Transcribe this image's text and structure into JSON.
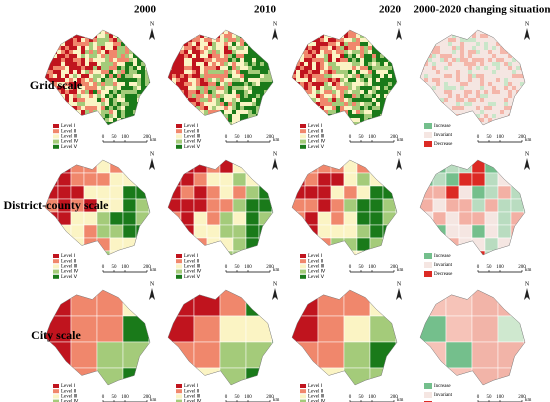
{
  "column_headers": [
    "2000",
    "2010",
    "2020",
    "2000-2020 changing situation"
  ],
  "row_labels": [
    "Grid scale",
    "District-county scale",
    "City scale"
  ],
  "level_legend": [
    "Level Ⅰ",
    "Level Ⅱ",
    "Level Ⅲ",
    "Level Ⅳ",
    "Level Ⅴ"
  ],
  "level_colors": [
    "#c0141e",
    "#f0876c",
    "#fbf4c4",
    "#a4cb7a",
    "#1a7a1a"
  ],
  "change_legend": [
    "Increase",
    "Invariant",
    "Decrease"
  ],
  "change_colors": [
    "#74bf8c",
    "#f5e6e2",
    "#dc2a24"
  ],
  "scale_bar": {
    "labels": [
      "0",
      "50",
      "100",
      "200"
    ],
    "unit": "km"
  },
  "north": "N"
}
